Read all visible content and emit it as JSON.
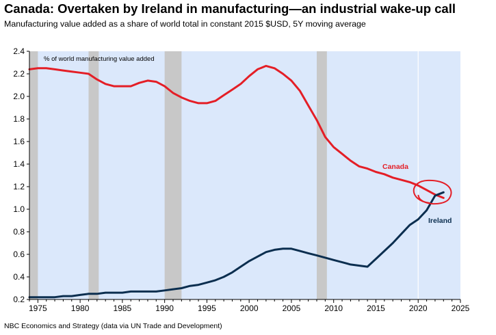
{
  "chart_data": {
    "type": "line",
    "title": "Canada: Overtaken by Ireland in manufacturing—an industrial wake-up call",
    "subtitle": "Manufacturing value added as a share of world total in constant 2015 $USD, 5Y moving average",
    "source": "NBC Economics and Strategy (data via UN Trade and Development)",
    "ylabel": "% of world manufacturing value added",
    "xlabel": "",
    "xlim": [
      1974,
      2025
    ],
    "ylim": [
      0.2,
      2.4
    ],
    "xticks": [
      1975,
      1980,
      1985,
      1990,
      1995,
      2000,
      2005,
      2010,
      2015,
      2020,
      2025
    ],
    "yticks": [
      0.2,
      0.4,
      0.6,
      0.8,
      1.0,
      1.2,
      1.4,
      1.6,
      1.8,
      2.0,
      2.2,
      2.4
    ],
    "ytick_labels": [
      "0.2",
      "0.4",
      "0.6",
      "0.8",
      "1.0",
      "1.2",
      "1.4",
      "1.6",
      "1.8",
      "2.0",
      "2.2",
      "2.4"
    ],
    "recessions": [
      [
        1974,
        1975
      ],
      [
        1981,
        1982.2
      ],
      [
        1990,
        1992
      ],
      [
        2008,
        2009.2
      ]
    ],
    "reference_line_x": 2020,
    "series": [
      {
        "name": "Canada",
        "color": "#e41e26",
        "x": [
          1974,
          1975,
          1976,
          1977,
          1978,
          1979,
          1980,
          1981,
          1982,
          1983,
          1984,
          1985,
          1986,
          1987,
          1988,
          1989,
          1990,
          1991,
          1992,
          1993,
          1994,
          1995,
          1996,
          1997,
          1998,
          1999,
          2000,
          2001,
          2002,
          2003,
          2004,
          2005,
          2006,
          2007,
          2008,
          2009,
          2010,
          2011,
          2012,
          2013,
          2014,
          2015,
          2016,
          2017,
          2018,
          2019,
          2020,
          2021,
          2022,
          2023
        ],
        "values": [
          2.24,
          2.25,
          2.25,
          2.24,
          2.23,
          2.22,
          2.21,
          2.2,
          2.15,
          2.11,
          2.09,
          2.09,
          2.09,
          2.12,
          2.14,
          2.13,
          2.09,
          2.03,
          1.99,
          1.96,
          1.94,
          1.94,
          1.96,
          2.01,
          2.06,
          2.11,
          2.18,
          2.24,
          2.27,
          2.25,
          2.2,
          2.14,
          2.05,
          1.92,
          1.79,
          1.64,
          1.55,
          1.49,
          1.43,
          1.38,
          1.36,
          1.33,
          1.31,
          1.28,
          1.26,
          1.24,
          1.21,
          1.17,
          1.13,
          1.1
        ]
      },
      {
        "name": "Ireland",
        "color": "#0b2e4f",
        "x": [
          1974,
          1975,
          1976,
          1977,
          1978,
          1979,
          1980,
          1981,
          1982,
          1983,
          1984,
          1985,
          1986,
          1987,
          1988,
          1989,
          1990,
          1991,
          1992,
          1993,
          1994,
          1995,
          1996,
          1997,
          1998,
          1999,
          2000,
          2001,
          2002,
          2003,
          2004,
          2005,
          2006,
          2007,
          2008,
          2009,
          2010,
          2011,
          2012,
          2013,
          2014,
          2015,
          2016,
          2017,
          2018,
          2019,
          2020,
          2021,
          2022,
          2023
        ],
        "values": [
          0.22,
          0.22,
          0.22,
          0.22,
          0.23,
          0.23,
          0.24,
          0.25,
          0.25,
          0.26,
          0.26,
          0.26,
          0.27,
          0.27,
          0.27,
          0.27,
          0.28,
          0.29,
          0.3,
          0.32,
          0.33,
          0.35,
          0.37,
          0.4,
          0.44,
          0.49,
          0.54,
          0.58,
          0.62,
          0.64,
          0.65,
          0.65,
          0.63,
          0.61,
          0.59,
          0.57,
          0.55,
          0.53,
          0.51,
          0.5,
          0.49,
          0.56,
          0.63,
          0.7,
          0.78,
          0.86,
          0.91,
          0.99,
          1.12,
          1.15
        ]
      }
    ],
    "annotation": {
      "type": "circle",
      "target": "crossover",
      "x": 2021.8,
      "y": 1.14,
      "color": "#e41e26"
    }
  }
}
